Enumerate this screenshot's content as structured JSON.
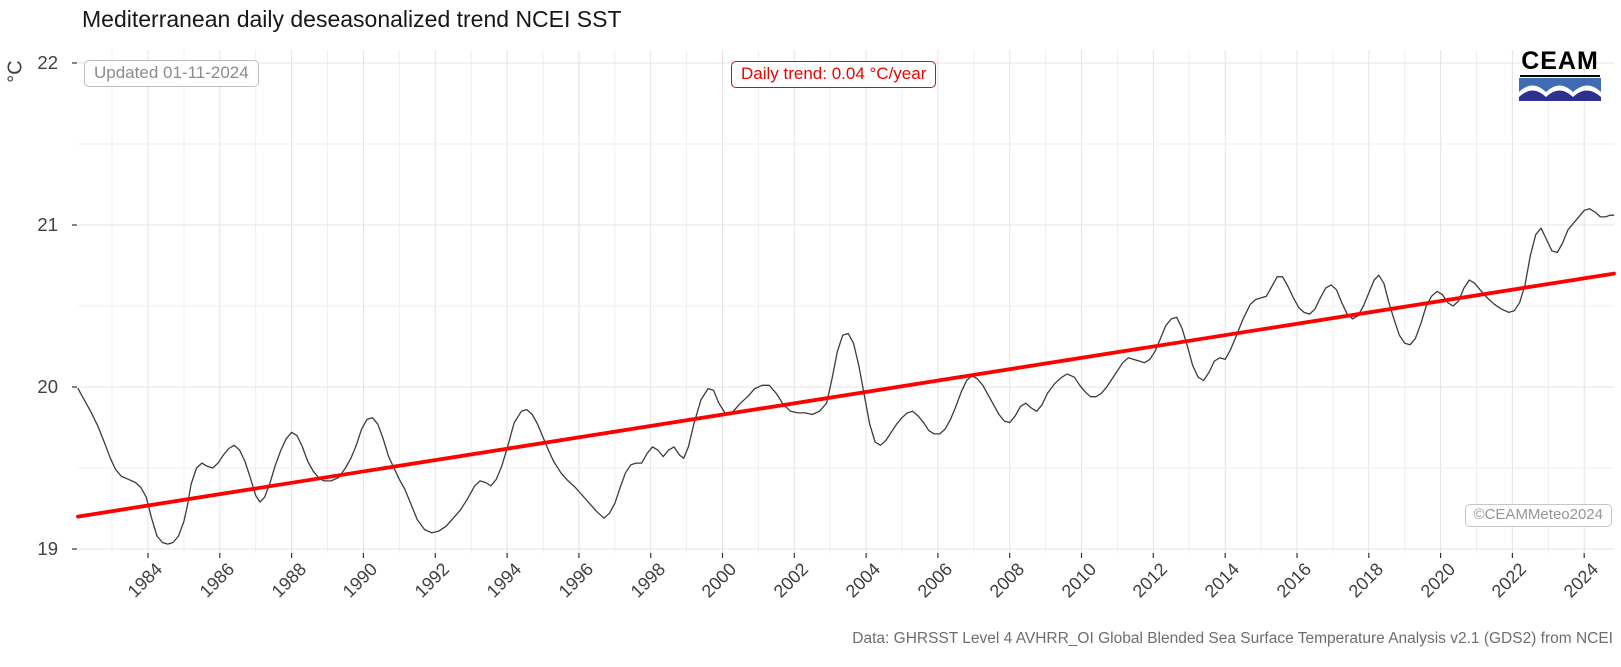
{
  "header": {
    "title": "Mediterranean daily deseasonalized trend NCEI SST"
  },
  "annotations": {
    "updated": "Updated 01-11-2024",
    "trend_label": "Daily trend: 0.04 °C/year",
    "watermark": "©CEAMMeteo2024",
    "caption": "Data: GHRSST Level 4 AVHRR_OI Global Blended Sea Surface Temperature Analysis v2.1 (GDS2) from NCEI"
  },
  "logo": {
    "text": "CEAM",
    "wave_top_color": "#3f6cb5",
    "wave_bottom_color": "#2c3190"
  },
  "colors": {
    "series_line": "#3c3c3c",
    "trend_line": "#ff0000",
    "grid_major": "#e4e4e4",
    "grid_minor": "#efefef",
    "tick": "#333333"
  },
  "chart_data": {
    "type": "line",
    "title": "Mediterranean daily deseasonalized trend NCEI SST",
    "xlabel": "",
    "ylabel": "°C",
    "xlim": [
      1982.05,
      2024.83
    ],
    "ylim": [
      18.975,
      22.08
    ],
    "x_ticks": [
      1984,
      1986,
      1988,
      1990,
      1992,
      1994,
      1996,
      1998,
      2000,
      2002,
      2004,
      2006,
      2008,
      2010,
      2012,
      2014,
      2016,
      2018,
      2020,
      2022,
      2024
    ],
    "y_ticks": [
      19,
      20,
      21,
      22
    ],
    "grid": "major and minor, light gray, minor at 0.5 °C and odd years",
    "legend": "none",
    "annotation_trend_value_c_per_year": 0.04,
    "series": [
      {
        "name": "daily deseasonalized SST",
        "role": "data",
        "points": [
          [
            1982.05,
            19.99
          ],
          [
            1982.2,
            19.93
          ],
          [
            1982.4,
            19.85
          ],
          [
            1982.6,
            19.76
          ],
          [
            1982.8,
            19.65
          ],
          [
            1982.95,
            19.56
          ],
          [
            1983.1,
            19.49
          ],
          [
            1983.25,
            19.45
          ],
          [
            1983.45,
            19.43
          ],
          [
            1983.65,
            19.41
          ],
          [
            1983.8,
            19.38
          ],
          [
            1983.95,
            19.32
          ],
          [
            1984.1,
            19.19
          ],
          [
            1984.25,
            19.08
          ],
          [
            1984.4,
            19.04
          ],
          [
            1984.55,
            19.03
          ],
          [
            1984.7,
            19.04
          ],
          [
            1984.85,
            19.08
          ],
          [
            1985.0,
            19.17
          ],
          [
            1985.1,
            19.27
          ],
          [
            1985.2,
            19.4
          ],
          [
            1985.35,
            19.5
          ],
          [
            1985.5,
            19.53
          ],
          [
            1985.65,
            19.51
          ],
          [
            1985.8,
            19.5
          ],
          [
            1985.95,
            19.53
          ],
          [
            1986.1,
            19.58
          ],
          [
            1986.25,
            19.62
          ],
          [
            1986.4,
            19.64
          ],
          [
            1986.55,
            19.61
          ],
          [
            1986.7,
            19.54
          ],
          [
            1986.85,
            19.44
          ],
          [
            1987.0,
            19.33
          ],
          [
            1987.12,
            19.29
          ],
          [
            1987.25,
            19.32
          ],
          [
            1987.4,
            19.41
          ],
          [
            1987.55,
            19.52
          ],
          [
            1987.7,
            19.61
          ],
          [
            1987.85,
            19.68
          ],
          [
            1988.0,
            19.72
          ],
          [
            1988.15,
            19.7
          ],
          [
            1988.3,
            19.63
          ],
          [
            1988.45,
            19.54
          ],
          [
            1988.6,
            19.48
          ],
          [
            1988.75,
            19.44
          ],
          [
            1988.9,
            19.42
          ],
          [
            1989.1,
            19.42
          ],
          [
            1989.3,
            19.44
          ],
          [
            1989.5,
            19.5
          ],
          [
            1989.65,
            19.56
          ],
          [
            1989.8,
            19.64
          ],
          [
            1989.95,
            19.74
          ],
          [
            1990.1,
            19.8
          ],
          [
            1990.25,
            19.81
          ],
          [
            1990.4,
            19.77
          ],
          [
            1990.55,
            19.68
          ],
          [
            1990.7,
            19.57
          ],
          [
            1990.85,
            19.5
          ],
          [
            1991.0,
            19.43
          ],
          [
            1991.15,
            19.37
          ],
          [
            1991.3,
            19.29
          ],
          [
            1991.5,
            19.18
          ],
          [
            1991.7,
            19.12
          ],
          [
            1991.9,
            19.1
          ],
          [
            1992.1,
            19.11
          ],
          [
            1992.3,
            19.14
          ],
          [
            1992.5,
            19.19
          ],
          [
            1992.7,
            19.24
          ],
          [
            1992.9,
            19.31
          ],
          [
            1993.1,
            19.39
          ],
          [
            1993.25,
            19.42
          ],
          [
            1993.4,
            19.41
          ],
          [
            1993.55,
            19.39
          ],
          [
            1993.7,
            19.43
          ],
          [
            1993.85,
            19.51
          ],
          [
            1994.0,
            19.62
          ],
          [
            1994.2,
            19.78
          ],
          [
            1994.4,
            19.85
          ],
          [
            1994.55,
            19.86
          ],
          [
            1994.7,
            19.83
          ],
          [
            1994.85,
            19.77
          ],
          [
            1995.0,
            19.69
          ],
          [
            1995.15,
            19.61
          ],
          [
            1995.3,
            19.54
          ],
          [
            1995.5,
            19.47
          ],
          [
            1995.7,
            19.42
          ],
          [
            1995.9,
            19.38
          ],
          [
            1996.1,
            19.33
          ],
          [
            1996.3,
            19.28
          ],
          [
            1996.5,
            19.23
          ],
          [
            1996.7,
            19.19
          ],
          [
            1996.85,
            19.22
          ],
          [
            1997.0,
            19.28
          ],
          [
            1997.15,
            19.38
          ],
          [
            1997.3,
            19.47
          ],
          [
            1997.45,
            19.52
          ],
          [
            1997.6,
            19.53
          ],
          [
            1997.75,
            19.53
          ],
          [
            1997.9,
            19.59
          ],
          [
            1998.05,
            19.63
          ],
          [
            1998.2,
            19.61
          ],
          [
            1998.35,
            19.57
          ],
          [
            1998.5,
            19.61
          ],
          [
            1998.65,
            19.63
          ],
          [
            1998.8,
            19.58
          ],
          [
            1998.92,
            19.56
          ],
          [
            1999.05,
            19.63
          ],
          [
            1999.2,
            19.77
          ],
          [
            1999.4,
            19.92
          ],
          [
            1999.6,
            19.99
          ],
          [
            1999.75,
            19.98
          ],
          [
            1999.9,
            19.9
          ],
          [
            2000.1,
            19.83
          ],
          [
            2000.3,
            19.85
          ],
          [
            2000.5,
            19.9
          ],
          [
            2000.7,
            19.94
          ],
          [
            2000.9,
            19.99
          ],
          [
            2001.1,
            20.01
          ],
          [
            2001.3,
            20.01
          ],
          [
            2001.5,
            19.96
          ],
          [
            2001.7,
            19.89
          ],
          [
            2001.9,
            19.85
          ],
          [
            2002.1,
            19.84
          ],
          [
            2002.3,
            19.84
          ],
          [
            2002.5,
            19.83
          ],
          [
            2002.7,
            19.85
          ],
          [
            2002.9,
            19.9
          ],
          [
            2003.05,
            20.05
          ],
          [
            2003.2,
            20.22
          ],
          [
            2003.35,
            20.32
          ],
          [
            2003.5,
            20.33
          ],
          [
            2003.65,
            20.27
          ],
          [
            2003.8,
            20.13
          ],
          [
            2003.95,
            19.95
          ],
          [
            2004.1,
            19.77
          ],
          [
            2004.25,
            19.66
          ],
          [
            2004.4,
            19.64
          ],
          [
            2004.55,
            19.67
          ],
          [
            2004.7,
            19.72
          ],
          [
            2004.85,
            19.77
          ],
          [
            2005.0,
            19.81
          ],
          [
            2005.15,
            19.84
          ],
          [
            2005.3,
            19.85
          ],
          [
            2005.45,
            19.82
          ],
          [
            2005.6,
            19.78
          ],
          [
            2005.75,
            19.73
          ],
          [
            2005.9,
            19.71
          ],
          [
            2006.05,
            19.71
          ],
          [
            2006.2,
            19.74
          ],
          [
            2006.35,
            19.8
          ],
          [
            2006.5,
            19.88
          ],
          [
            2006.65,
            19.97
          ],
          [
            2006.8,
            20.04
          ],
          [
            2006.95,
            20.07
          ],
          [
            2007.1,
            20.05
          ],
          [
            2007.25,
            20.01
          ],
          [
            2007.4,
            19.95
          ],
          [
            2007.55,
            19.89
          ],
          [
            2007.7,
            19.83
          ],
          [
            2007.85,
            19.79
          ],
          [
            2008.0,
            19.78
          ],
          [
            2008.15,
            19.82
          ],
          [
            2008.3,
            19.88
          ],
          [
            2008.45,
            19.9
          ],
          [
            2008.6,
            19.87
          ],
          [
            2008.75,
            19.85
          ],
          [
            2008.9,
            19.89
          ],
          [
            2009.05,
            19.96
          ],
          [
            2009.25,
            20.02
          ],
          [
            2009.45,
            20.06
          ],
          [
            2009.6,
            20.08
          ],
          [
            2009.8,
            20.06
          ],
          [
            2009.95,
            20.01
          ],
          [
            2010.1,
            19.97
          ],
          [
            2010.25,
            19.94
          ],
          [
            2010.4,
            19.94
          ],
          [
            2010.55,
            19.96
          ],
          [
            2010.7,
            20.0
          ],
          [
            2010.85,
            20.05
          ],
          [
            2011.0,
            20.1
          ],
          [
            2011.15,
            20.15
          ],
          [
            2011.3,
            20.18
          ],
          [
            2011.45,
            20.17
          ],
          [
            2011.6,
            20.16
          ],
          [
            2011.75,
            20.15
          ],
          [
            2011.9,
            20.17
          ],
          [
            2012.05,
            20.22
          ],
          [
            2012.2,
            20.3
          ],
          [
            2012.35,
            20.38
          ],
          [
            2012.5,
            20.42
          ],
          [
            2012.65,
            20.43
          ],
          [
            2012.8,
            20.36
          ],
          [
            2012.95,
            20.25
          ],
          [
            2013.1,
            20.13
          ],
          [
            2013.25,
            20.06
          ],
          [
            2013.4,
            20.04
          ],
          [
            2013.55,
            20.09
          ],
          [
            2013.7,
            20.16
          ],
          [
            2013.85,
            20.18
          ],
          [
            2014.0,
            20.17
          ],
          [
            2014.15,
            20.23
          ],
          [
            2014.3,
            20.31
          ],
          [
            2014.5,
            20.42
          ],
          [
            2014.7,
            20.51
          ],
          [
            2014.85,
            20.54
          ],
          [
            2015.0,
            20.55
          ],
          [
            2015.15,
            20.56
          ],
          [
            2015.3,
            20.62
          ],
          [
            2015.45,
            20.68
          ],
          [
            2015.6,
            20.68
          ],
          [
            2015.75,
            20.62
          ],
          [
            2015.9,
            20.55
          ],
          [
            2016.05,
            20.49
          ],
          [
            2016.2,
            20.46
          ],
          [
            2016.35,
            20.45
          ],
          [
            2016.5,
            20.48
          ],
          [
            2016.65,
            20.55
          ],
          [
            2016.8,
            20.61
          ],
          [
            2016.95,
            20.63
          ],
          [
            2017.1,
            20.6
          ],
          [
            2017.25,
            20.52
          ],
          [
            2017.4,
            20.45
          ],
          [
            2017.55,
            20.42
          ],
          [
            2017.7,
            20.44
          ],
          [
            2017.85,
            20.5
          ],
          [
            2018.0,
            20.58
          ],
          [
            2018.15,
            20.66
          ],
          [
            2018.28,
            20.69
          ],
          [
            2018.42,
            20.64
          ],
          [
            2018.55,
            20.53
          ],
          [
            2018.7,
            20.42
          ],
          [
            2018.85,
            20.32
          ],
          [
            2019.0,
            20.27
          ],
          [
            2019.15,
            20.26
          ],
          [
            2019.3,
            20.3
          ],
          [
            2019.45,
            20.39
          ],
          [
            2019.6,
            20.5
          ],
          [
            2019.75,
            20.56
          ],
          [
            2019.9,
            20.59
          ],
          [
            2020.05,
            20.57
          ],
          [
            2020.2,
            20.52
          ],
          [
            2020.35,
            20.5
          ],
          [
            2020.5,
            20.53
          ],
          [
            2020.65,
            20.61
          ],
          [
            2020.8,
            20.66
          ],
          [
            2020.95,
            20.64
          ],
          [
            2021.1,
            20.6
          ],
          [
            2021.3,
            20.55
          ],
          [
            2021.5,
            20.51
          ],
          [
            2021.7,
            20.48
          ],
          [
            2021.9,
            20.46
          ],
          [
            2022.05,
            20.47
          ],
          [
            2022.2,
            20.52
          ],
          [
            2022.35,
            20.63
          ],
          [
            2022.5,
            20.81
          ],
          [
            2022.65,
            20.94
          ],
          [
            2022.8,
            20.98
          ],
          [
            2022.95,
            20.91
          ],
          [
            2023.1,
            20.84
          ],
          [
            2023.25,
            20.83
          ],
          [
            2023.4,
            20.89
          ],
          [
            2023.55,
            20.97
          ],
          [
            2023.7,
            21.01
          ],
          [
            2023.85,
            21.05
          ],
          [
            2024.0,
            21.09
          ],
          [
            2024.15,
            21.1
          ],
          [
            2024.3,
            21.08
          ],
          [
            2024.45,
            21.05
          ],
          [
            2024.6,
            21.05
          ],
          [
            2024.72,
            21.06
          ],
          [
            2024.82,
            21.06
          ]
        ]
      },
      {
        "name": "linear trend 0.04 °C/year",
        "role": "trend",
        "points": [
          [
            1982.05,
            19.2
          ],
          [
            2024.83,
            20.7
          ]
        ]
      }
    ]
  }
}
